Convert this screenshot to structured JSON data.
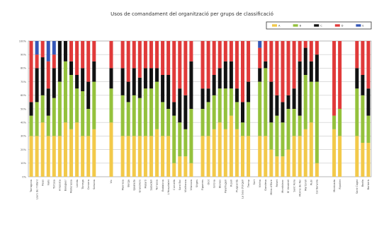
{
  "title": "Usos de comandament del organització per grups de classificació",
  "colors": {
    "A": "#f2c94a",
    "B": "#94c13c",
    "C": "#121212",
    "D": "#e03a3a",
    "E": "#3557b7",
    "grid": "#c8c8c8",
    "frame": "#9a9a9a"
  },
  "chart_data": {
    "type": "bar",
    "stacked": true,
    "percent": true,
    "title": "Usos de comandament del organització per grups de classificació",
    "xlabel": "",
    "ylabel": "",
    "ylim": [
      0,
      100
    ],
    "yticks": [
      "0%",
      "10%",
      "20%",
      "30%",
      "40%",
      "50%",
      "60%",
      "70%",
      "80%",
      "90%",
      "100%"
    ],
    "grid": true,
    "legend_position": "top-right",
    "series_keys": [
      "A",
      "B",
      "C",
      "D",
      "E"
    ],
    "legend": [
      "A",
      "B",
      "C",
      "D",
      "E"
    ],
    "categories": [
      {
        "label": "Tarragona",
        "v": [
          30,
          15,
          10,
          45,
          0
        ]
      },
      {
        "label": "Llars de l'Infant",
        "v": [
          30,
          25,
          25,
          10,
          10
        ]
      },
      {
        "label": "Reus",
        "v": [
          40,
          20,
          28,
          12,
          0
        ]
      },
      {
        "label": "Valls",
        "v": [
          30,
          15,
          20,
          20,
          15
        ]
      },
      {
        "label": "Tortosa",
        "v": [
          30,
          28,
          22,
          10,
          10
        ]
      },
      {
        "label": "Amposta",
        "v": [
          30,
          40,
          30,
          0,
          0
        ]
      },
      {
        "label": "Balaguer",
        "v": [
          40,
          45,
          15,
          0,
          0
        ]
      },
      {
        "label": "Mollerussa",
        "v": [
          35,
          40,
          10,
          15,
          0
        ]
      },
      {
        "label": "Lleida",
        "v": [
          40,
          25,
          10,
          25,
          0
        ]
      },
      {
        "label": "Tàrrega",
        "v": [
          30,
          33,
          17,
          20,
          0
        ]
      },
      {
        "label": "Cervera",
        "v": [
          30,
          20,
          20,
          30,
          0
        ]
      },
      {
        "label": "Solsona",
        "v": [
          35,
          35,
          15,
          15,
          0
        ]
      },
      {
        "label": "",
        "v": [
          0,
          0,
          0,
          0,
          0
        ]
      },
      {
        "label": "",
        "v": [
          0,
          0,
          0,
          0,
          0
        ]
      },
      {
        "label": "Vic",
        "v": [
          40,
          25,
          15,
          20,
          0
        ]
      },
      {
        "label": "",
        "v": [
          0,
          0,
          0,
          0,
          0
        ]
      },
      {
        "label": "Manresa",
        "v": [
          30,
          30,
          20,
          20,
          0
        ]
      },
      {
        "label": "Berga",
        "v": [
          30,
          25,
          15,
          30,
          0
        ]
      },
      {
        "label": "Igualada",
        "v": [
          30,
          30,
          20,
          20,
          0
        ]
      },
      {
        "label": "Granollers",
        "v": [
          30,
          28,
          15,
          27,
          0
        ]
      },
      {
        "label": "Mataró",
        "v": [
          30,
          35,
          15,
          20,
          0
        ]
      },
      {
        "label": "Sabadell",
        "v": [
          30,
          35,
          15,
          20,
          0
        ]
      },
      {
        "label": "Terrassa",
        "v": [
          35,
          35,
          10,
          20,
          0
        ]
      },
      {
        "label": "Badalona",
        "v": [
          30,
          25,
          20,
          25,
          0
        ]
      },
      {
        "label": "L'Hospitalet",
        "v": [
          30,
          20,
          25,
          25,
          0
        ]
      },
      {
        "label": "Cornellà",
        "v": [
          10,
          35,
          10,
          45,
          0
        ]
      },
      {
        "label": "Sant Boi",
        "v": [
          15,
          25,
          25,
          35,
          0
        ]
      },
      {
        "label": "Vilafranca",
        "v": [
          15,
          20,
          25,
          40,
          0
        ]
      },
      {
        "label": "Vilanova",
        "v": [
          10,
          40,
          35,
          15,
          0
        ]
      },
      {
        "label": "Sitges",
        "v": [
          0,
          0,
          0,
          0,
          0
        ]
      },
      {
        "label": "Figueres",
        "v": [
          30,
          20,
          15,
          35,
          0
        ]
      },
      {
        "label": "Olot",
        "v": [
          30,
          25,
          10,
          35,
          0
        ]
      },
      {
        "label": "Girona",
        "v": [
          35,
          25,
          15,
          25,
          0
        ]
      },
      {
        "label": "Blanes",
        "v": [
          40,
          25,
          15,
          20,
          0
        ]
      },
      {
        "label": "Palafrugell",
        "v": [
          35,
          30,
          20,
          15,
          0
        ]
      },
      {
        "label": "Ripoll",
        "v": [
          45,
          20,
          20,
          15,
          0
        ]
      },
      {
        "label": "Puigcerdà",
        "v": [
          35,
          20,
          10,
          35,
          0
        ]
      },
      {
        "label": "La Seu d'Urgell",
        "v": [
          30,
          10,
          15,
          45,
          0
        ]
      },
      {
        "label": "Tremp",
        "v": [
          30,
          25,
          15,
          30,
          0
        ]
      },
      {
        "label": "Sort",
        "v": [
          0,
          0,
          0,
          0,
          0
        ]
      },
      {
        "label": "Vielha",
        "v": [
          30,
          40,
          10,
          15,
          5
        ]
      },
      {
        "label": "Gandesa",
        "v": [
          30,
          50,
          5,
          15,
          0
        ]
      },
      {
        "label": "Móra d'Ebre",
        "v": [
          20,
          20,
          30,
          30,
          0
        ]
      },
      {
        "label": "Falset",
        "v": [
          15,
          30,
          15,
          40,
          0
        ]
      },
      {
        "label": "Montblanc",
        "v": [
          15,
          25,
          15,
          45,
          0
        ]
      },
      {
        "label": "El Vendrell",
        "v": [
          20,
          30,
          10,
          40,
          0
        ]
      },
      {
        "label": "Sant Feliu",
        "v": [
          30,
          20,
          15,
          35,
          0
        ]
      },
      {
        "label": "Molins de Rei",
        "v": [
          30,
          15,
          40,
          15,
          0
        ]
      },
      {
        "label": "Martorell",
        "v": [
          35,
          40,
          20,
          5,
          0
        ]
      },
      {
        "label": "Rubí",
        "v": [
          40,
          30,
          15,
          15,
          0
        ]
      },
      {
        "label": "Cerdanyola",
        "v": [
          10,
          60,
          20,
          10,
          0
        ]
      },
      {
        "label": "",
        "v": [
          0,
          0,
          0,
          0,
          0
        ]
      },
      {
        "label": "",
        "v": [
          0,
          0,
          0,
          0,
          0
        ]
      },
      {
        "label": "Montcada",
        "v": [
          35,
          10,
          0,
          55,
          0
        ]
      },
      {
        "label": "Ripollet",
        "v": [
          30,
          20,
          0,
          50,
          0
        ]
      },
      {
        "label": "",
        "v": [
          0,
          0,
          0,
          0,
          0
        ]
      },
      {
        "label": "",
        "v": [
          0,
          0,
          0,
          0,
          0
        ]
      },
      {
        "label": "Sant Cugat",
        "v": [
          30,
          35,
          15,
          20,
          0
        ]
      },
      {
        "label": "Badia",
        "v": [
          25,
          35,
          15,
          25,
          0
        ]
      },
      {
        "label": "Barberà",
        "v": [
          25,
          20,
          20,
          35,
          0
        ]
      }
    ]
  }
}
